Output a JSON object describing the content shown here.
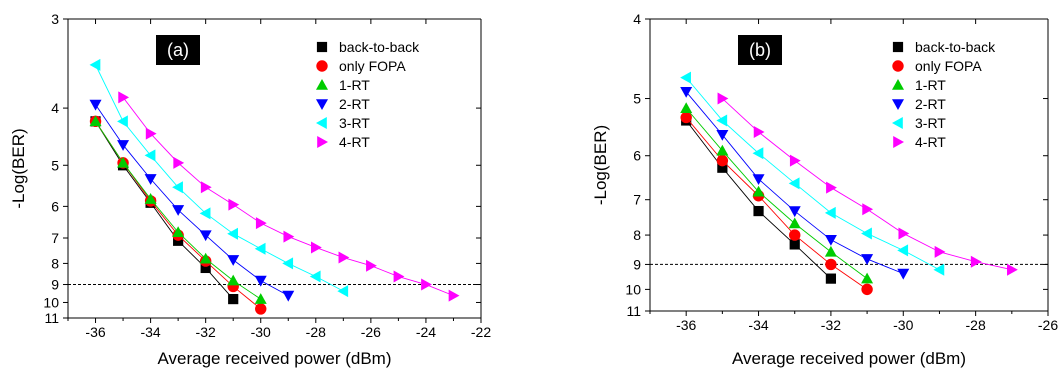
{
  "chart_data": [
    {
      "type": "scatter",
      "panel_label": "(a)",
      "xlabel": "Average received power (dBm)",
      "ylabel": "-Log(BER)",
      "xlim": [
        -37,
        -22
      ],
      "ylim": [
        3,
        11
      ],
      "y_scale": "log-log (inverted, 3 at top to 11 at bottom)",
      "xticks": [
        -36,
        -34,
        -32,
        -30,
        -28,
        -26,
        -24,
        -22
      ],
      "yticks": [
        3,
        4,
        5,
        6,
        7,
        8,
        9,
        10,
        11
      ],
      "reference_line_y": 9,
      "grid": false,
      "legend_position": "top-right",
      "series": [
        {
          "name": "back-to-back",
          "marker": "square",
          "color": "#000000",
          "x": [
            -36,
            -35,
            -34,
            -33,
            -32,
            -31
          ],
          "y": [
            4.2,
            5.0,
            5.9,
            7.1,
            8.2,
            9.8
          ]
        },
        {
          "name": "only FOPA",
          "marker": "circle",
          "color": "#ff0000",
          "x": [
            -36,
            -35,
            -34,
            -33,
            -32,
            -31,
            -30
          ],
          "y": [
            4.2,
            4.95,
            5.85,
            6.9,
            7.9,
            9.1,
            10.4
          ]
        },
        {
          "name": "1-RT",
          "marker": "triangle-up",
          "color": "#00cc00",
          "x": [
            -36,
            -35,
            -34,
            -33,
            -32,
            -31,
            -30
          ],
          "y": [
            4.2,
            4.95,
            5.8,
            6.8,
            7.8,
            8.8,
            9.8
          ]
        },
        {
          "name": "2-RT",
          "marker": "triangle-down",
          "color": "#0000ff",
          "x": [
            -36,
            -35,
            -34,
            -33,
            -32,
            -31,
            -30,
            -29
          ],
          "y": [
            3.95,
            4.6,
            5.3,
            6.1,
            6.9,
            7.85,
            8.8,
            9.6
          ]
        },
        {
          "name": "3-RT",
          "marker": "triangle-left",
          "color": "#00ffff",
          "x": [
            -36,
            -35,
            -34,
            -33,
            -32,
            -31,
            -30,
            -29,
            -28,
            -27
          ],
          "y": [
            3.45,
            4.2,
            4.8,
            5.5,
            6.2,
            6.85,
            7.4,
            8.0,
            8.6,
            9.35
          ]
        },
        {
          "name": "4-RT",
          "marker": "triangle-right",
          "color": "#ff00ff",
          "x": [
            -35,
            -34,
            -33,
            -32,
            -31,
            -30,
            -29,
            -28,
            -27,
            -26,
            -25,
            -24,
            -23
          ],
          "y": [
            3.85,
            4.4,
            4.95,
            5.5,
            5.95,
            6.5,
            6.95,
            7.35,
            7.75,
            8.1,
            8.6,
            9.0,
            9.6
          ]
        }
      ]
    },
    {
      "type": "scatter",
      "panel_label": "(b)",
      "xlabel": "Average received power (dBm)",
      "ylabel": "-Log(BER)",
      "xlim": [
        -37,
        -26
      ],
      "ylim": [
        4,
        11
      ],
      "y_scale": "log-log (inverted, 4 at top to 11 at bottom)",
      "xticks": [
        -36,
        -34,
        -32,
        -30,
        -28,
        -26
      ],
      "yticks": [
        4,
        5,
        6,
        7,
        8,
        9,
        10,
        11
      ],
      "reference_line_y": 9,
      "grid": false,
      "legend_position": "top-right",
      "series": [
        {
          "name": "back-to-back",
          "marker": "square",
          "color": "#000000",
          "x": [
            -36,
            -35,
            -34,
            -33,
            -32
          ],
          "y": [
            5.35,
            6.25,
            7.3,
            8.3,
            9.55
          ]
        },
        {
          "name": "only FOPA",
          "marker": "circle",
          "color": "#ff0000",
          "x": [
            -36,
            -35,
            -34,
            -33,
            -32,
            -31
          ],
          "y": [
            5.3,
            6.1,
            6.9,
            8.0,
            9.0,
            10.0
          ]
        },
        {
          "name": "1-RT",
          "marker": "triangle-up",
          "color": "#00cc00",
          "x": [
            -36,
            -35,
            -34,
            -33,
            -32,
            -31
          ],
          "y": [
            5.15,
            5.9,
            6.8,
            7.65,
            8.55,
            9.55
          ]
        },
        {
          "name": "2-RT",
          "marker": "triangle-down",
          "color": "#0000ff",
          "x": [
            -36,
            -35,
            -34,
            -33,
            -32,
            -31,
            -30
          ],
          "y": [
            4.9,
            5.6,
            6.5,
            7.3,
            8.15,
            8.8,
            9.35
          ]
        },
        {
          "name": "3-RT",
          "marker": "triangle-left",
          "color": "#00ffff",
          "x": [
            -36,
            -35,
            -34,
            -33,
            -32,
            -31,
            -30,
            -29
          ],
          "y": [
            4.7,
            5.35,
            5.95,
            6.6,
            7.35,
            7.95,
            8.5,
            9.2
          ]
        },
        {
          "name": "4-RT",
          "marker": "triangle-right",
          "color": "#ff00ff",
          "x": [
            -35,
            -34,
            -33,
            -32,
            -31,
            -30,
            -29,
            -28,
            -27
          ],
          "y": [
            5.0,
            5.55,
            6.1,
            6.7,
            7.25,
            7.95,
            8.55,
            8.9,
            9.2
          ]
        }
      ]
    }
  ]
}
